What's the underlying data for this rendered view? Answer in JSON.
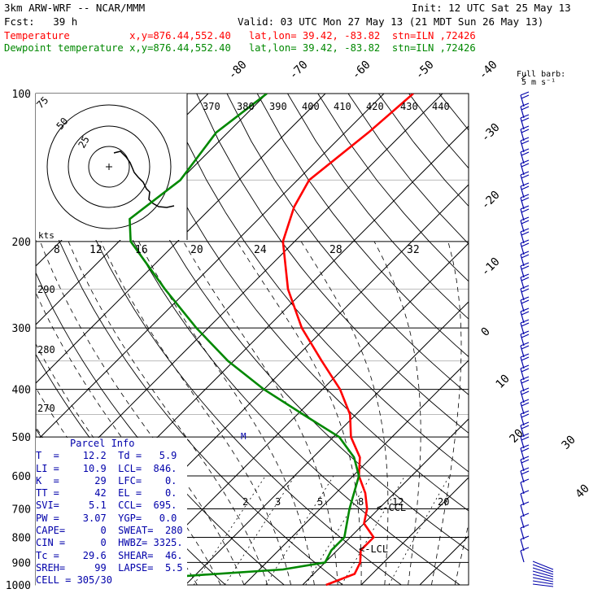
{
  "header": {
    "model": "3km ARW-WRF -- NCAR/MMM",
    "init": "Init: 12 UTC Sat 25 May 13",
    "fcst": "Fcst:   39 h",
    "valid": "Valid: 03 UTC Mon 27 May 13 (21 MDT Sun 26 May 13)",
    "temp_line": "Temperature          x,y=876.44,552.40   lat,lon= 39.42, -83.82  stn=ILN ,72426",
    "dew_line": "Dewpoint temperature x,y=876.44,552.40   lat,lon= 39.42, -83.82  stn=ILN ,72426"
  },
  "colors": {
    "temperature": "#ff0000",
    "dewpoint": "#008800",
    "wind": "#0000aa",
    "parcel_text": "#0000aa"
  },
  "wind_legend": {
    "line1": "Full barb:",
    "line2": "5 m s⁻¹"
  },
  "parcel_info": {
    "title": "Parcel Info",
    "rows": [
      "T  =    12.2  Td =   5.9",
      "LI =    10.9  LCL=  846.",
      "K  =      29  LFC=    0.",
      "TT =      42  EL =    0.",
      "SVI=     5.1  CCL=  695.",
      "PW =    3.07  YGP=   0.0",
      "CAPE=      0  SWEAT=  280",
      "CIN =      0  HWBZ= 3325.",
      "Tc =    29.6  SHEAR=  46.",
      "SREH=     99  LAPSE=  5.5",
      "CELL = 305/30"
    ]
  },
  "annotations": {
    "ccl": "<-CCL",
    "lcl": "<-LCL",
    "m_marker": "M"
  },
  "hodograph": {
    "kts_label": "kts",
    "rings": [
      "25",
      "50",
      "75"
    ]
  },
  "chart_data": {
    "type": "line",
    "title": "",
    "xlabel": "",
    "ylabel": "",
    "y_axis": "pressure (hPa), log scale",
    "pressure_ticks": [
      100,
      200,
      300,
      400,
      500,
      600,
      700,
      800,
      900,
      1000
    ],
    "temperature_tick_labels": [
      "-80",
      "-70",
      "-60",
      "-50",
      "-40",
      "-30",
      "-20",
      "-10",
      "0",
      "10",
      "20",
      "30",
      "40"
    ],
    "theta_labels": [
      "370",
      "380",
      "390",
      "400",
      "410",
      "420",
      "430",
      "440"
    ],
    "theta_labels_left": [
      "290",
      "280",
      "270"
    ],
    "mixing_ratio_labels_upper": [
      "8",
      "12",
      "16",
      "20",
      "24",
      "28",
      "32"
    ],
    "mixing_ratio_labels_lower": [
      "2",
      "3",
      "5",
      "8",
      "12",
      "20"
    ],
    "series": [
      {
        "name": "Temperature",
        "points": [
          {
            "p": 100,
            "t": -55
          },
          {
            "p": 120,
            "t": -56
          },
          {
            "p": 150,
            "t": -58
          },
          {
            "p": 170,
            "t": -56
          },
          {
            "p": 200,
            "t": -52
          },
          {
            "p": 250,
            "t": -43
          },
          {
            "p": 300,
            "t": -34
          },
          {
            "p": 350,
            "t": -25
          },
          {
            "p": 400,
            "t": -17
          },
          {
            "p": 450,
            "t": -11
          },
          {
            "p": 500,
            "t": -7
          },
          {
            "p": 550,
            "t": -2
          },
          {
            "p": 600,
            "t": 1
          },
          {
            "p": 650,
            "t": 5
          },
          {
            "p": 700,
            "t": 8
          },
          {
            "p": 750,
            "t": 10
          },
          {
            "p": 800,
            "t": 14
          },
          {
            "p": 850,
            "t": 14
          },
          {
            "p": 900,
            "t": 16
          },
          {
            "p": 950,
            "t": 17
          },
          {
            "p": 1000,
            "t": 14
          }
        ]
      },
      {
        "name": "Dewpoint temperature",
        "points": [
          {
            "p": 100,
            "t": -80
          },
          {
            "p": 120,
            "t": -82
          },
          {
            "p": 150,
            "t": -80
          },
          {
            "p": 180,
            "t": -82
          },
          {
            "p": 200,
            "t": -78
          },
          {
            "p": 250,
            "t": -64
          },
          {
            "p": 300,
            "t": -52
          },
          {
            "p": 350,
            "t": -41
          },
          {
            "p": 400,
            "t": -30
          },
          {
            "p": 450,
            "t": -19
          },
          {
            "p": 500,
            "t": -9
          },
          {
            "p": 550,
            "t": -3
          },
          {
            "p": 600,
            "t": 1
          },
          {
            "p": 700,
            "t": 5
          },
          {
            "p": 800,
            "t": 9
          },
          {
            "p": 850,
            "t": 9
          },
          {
            "p": 900,
            "t": 10
          },
          {
            "p": 930,
            "t": 4
          },
          {
            "p": 960,
            "t": -12
          },
          {
            "p": 980,
            "t": -30
          }
        ]
      }
    ]
  }
}
